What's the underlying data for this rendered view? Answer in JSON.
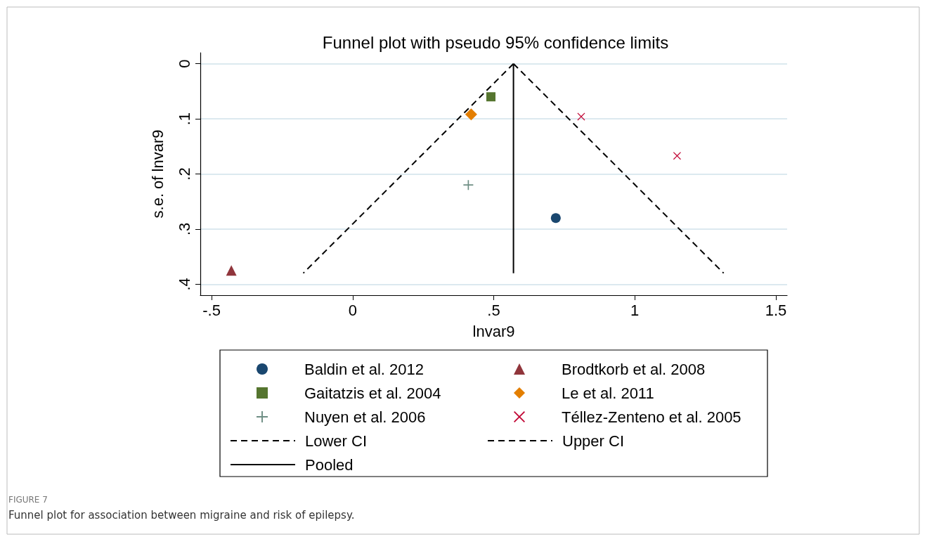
{
  "chart_data": {
    "type": "scatter",
    "title": "Funnel plot with pseudo 95% confidence limits",
    "xlabel": "lnvar9",
    "ylabel": "s.e. of lnvar9",
    "annotations": [
      "FIGURE 7",
      "Funnel plot for association between migraine and risk of epilepsy."
    ],
    "xlim": [
      -0.54,
      1.54
    ],
    "xticks": [
      {
        "value": -0.5,
        "label": "-.5"
      },
      0,
      {
        "value": 0.5,
        "label": ".5"
      },
      1,
      1.5
    ],
    "ylim": [
      0.42,
      -0.02
    ],
    "yticks": [
      0,
      {
        "value": 0.1,
        "label": ".1"
      },
      {
        "value": 0.2,
        "label": ".2"
      },
      {
        "value": 0.3,
        "label": ".3"
      },
      {
        "value": 0.4,
        "label": ".4"
      }
    ],
    "grid": "y",
    "legend": "bottom",
    "series": [
      {
        "name": "Baldin et al. 2012",
        "type": "scatter",
        "marker": "circle",
        "color": "#1a476f",
        "x": [
          0.72
        ],
        "values": [
          0.28
        ]
      },
      {
        "name": "Brodtkorb et al. 2008",
        "type": "scatter",
        "marker": "triangle",
        "color": "#90353b",
        "x": [
          -0.43
        ],
        "values": [
          0.375
        ]
      },
      {
        "name": "Gaitatzis et al. 2004",
        "type": "scatter",
        "marker": "square",
        "color": "#55752f",
        "x": [
          0.49
        ],
        "values": [
          0.06
        ]
      },
      {
        "name": "Le et al. 2011",
        "type": "scatter",
        "marker": "diamond",
        "color": "#e37e00",
        "x": [
          0.42
        ],
        "values": [
          0.092
        ]
      },
      {
        "name": "Nuyen et al. 2006",
        "type": "scatter",
        "marker": "plus",
        "color": "#6e8e84",
        "x": [
          0.41
        ],
        "values": [
          0.22
        ]
      },
      {
        "name": "Téllez-Zenteno et al. 2005",
        "type": "scatter",
        "marker": "cross",
        "color": "#c10534",
        "x": [
          0.81,
          1.15
        ],
        "values": [
          0.096,
          0.167
        ]
      },
      {
        "name": "Lower CI",
        "type": "line",
        "line_style": "dashed",
        "color": "#000000",
        "x": [
          0.57,
          -0.175
        ],
        "values": [
          0,
          0.38
        ]
      },
      {
        "name": "Upper CI",
        "type": "line",
        "line_style": "dashed",
        "color": "#000000",
        "x": [
          0.57,
          1.315
        ],
        "values": [
          0,
          0.38
        ]
      },
      {
        "name": "Pooled",
        "type": "line",
        "line_style": "solid",
        "color": "#000000",
        "x": [
          0.57,
          0.57
        ],
        "values": [
          0,
          0.38
        ]
      }
    ]
  }
}
